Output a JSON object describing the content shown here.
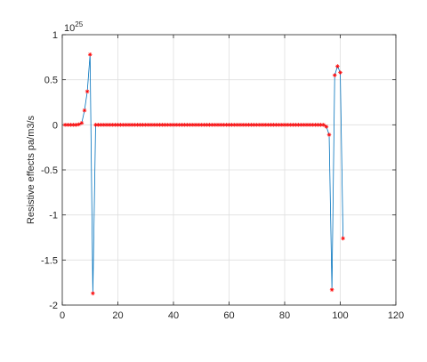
{
  "chart_data": {
    "type": "line",
    "title": "",
    "xlabel": "",
    "ylabel": "Resistive effects pa/m3/s",
    "y_exponent_base": "10",
    "y_exponent_power": "25",
    "xlim": [
      0,
      120
    ],
    "ylim": [
      -2,
      1
    ],
    "xticks": [
      0,
      20,
      40,
      60,
      80,
      100,
      120
    ],
    "yticks": [
      -2,
      -1.5,
      -1,
      -0.5,
      0,
      0.5,
      1
    ],
    "xtick_labels": [
      "0",
      "20",
      "40",
      "60",
      "80",
      "100",
      "120"
    ],
    "ytick_labels": [
      "-2",
      "-1.5",
      "-1",
      "-0.5",
      "0",
      "0.5",
      "1"
    ],
    "grid": true,
    "line_color": "#0072BD",
    "marker_color": "#FF0000",
    "marker": "asterisk",
    "series": [
      {
        "x": [
          1,
          2,
          3,
          4,
          5,
          6,
          7,
          8,
          9,
          10,
          11,
          12,
          13,
          14,
          15,
          16,
          17,
          18,
          19,
          20,
          21,
          22,
          23,
          24,
          25,
          26,
          27,
          28,
          29,
          30,
          31,
          32,
          33,
          34,
          35,
          36,
          37,
          38,
          39,
          40,
          41,
          42,
          43,
          44,
          45,
          46,
          47,
          48,
          49,
          50,
          51,
          52,
          53,
          54,
          55,
          56,
          57,
          58,
          59,
          60,
          61,
          62,
          63,
          64,
          65,
          66,
          67,
          68,
          69,
          70,
          71,
          72,
          73,
          74,
          75,
          76,
          77,
          78,
          79,
          80,
          81,
          82,
          83,
          84,
          85,
          86,
          87,
          88,
          89,
          90,
          91,
          92,
          93,
          94,
          95,
          96,
          97,
          98,
          99,
          100,
          101
        ],
        "y": [
          0,
          0,
          0,
          0,
          0,
          0.005,
          0.02,
          0.16,
          0.37,
          0.78,
          -1.87,
          0,
          0,
          0,
          0,
          0,
          0,
          0,
          0,
          0,
          0,
          0,
          0,
          0,
          0,
          0,
          0,
          0,
          0,
          0,
          0,
          0,
          0,
          0,
          0,
          0,
          0,
          0,
          0,
          0,
          0,
          0,
          0,
          0,
          0,
          0,
          0,
          0,
          0,
          0,
          0,
          0,
          0,
          0,
          0,
          0,
          0,
          0,
          0,
          0,
          0,
          0,
          0,
          0,
          0,
          0,
          0,
          0,
          0,
          0,
          0,
          0,
          0,
          0,
          0,
          0,
          0,
          0,
          0,
          0,
          0,
          0,
          0,
          0,
          0,
          0,
          0,
          0,
          0,
          0,
          0,
          0,
          0,
          0,
          -0.02,
          -0.11,
          -1.83,
          0.55,
          0.65,
          0.58,
          -1.26
        ]
      }
    ]
  }
}
